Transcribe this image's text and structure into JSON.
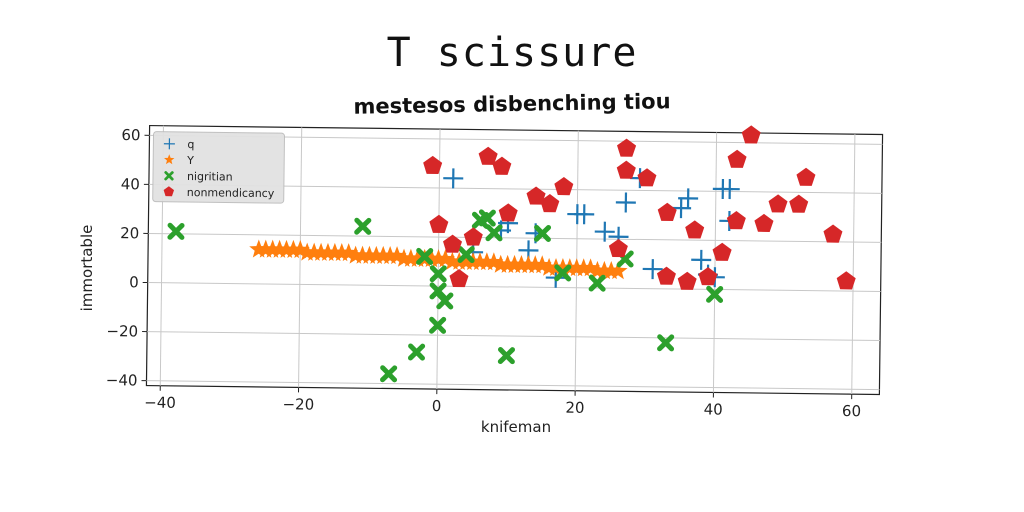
{
  "chart_data": {
    "type": "scatter",
    "title": "T scissure",
    "subtitle": "mestesos disbenching tiou",
    "xlabel": "knifeman",
    "ylabel": "immortable",
    "xlim": [
      -42,
      64
    ],
    "ylim": [
      -42,
      64
    ],
    "x_ticks": [
      -40,
      -20,
      0,
      20,
      40,
      60
    ],
    "y_ticks": [
      -40,
      -20,
      0,
      20,
      40,
      60
    ],
    "grid": true,
    "legend_position": "top-left",
    "series": [
      {
        "name": "q",
        "marker": "plus",
        "color": "#1f77b4",
        "points": [
          [
            2,
            44
          ],
          [
            5,
            14
          ],
          [
            9,
            23
          ],
          [
            10,
            26
          ],
          [
            13,
            15
          ],
          [
            14,
            22
          ],
          [
            17,
            4
          ],
          [
            20,
            30
          ],
          [
            21,
            30
          ],
          [
            24,
            23
          ],
          [
            26,
            21
          ],
          [
            27,
            35
          ],
          [
            29,
            45
          ],
          [
            31,
            8
          ],
          [
            35,
            33
          ],
          [
            36,
            37
          ],
          [
            38,
            12
          ],
          [
            39,
            6
          ],
          [
            40,
            5
          ],
          [
            41,
            41
          ],
          [
            42,
            41
          ],
          [
            42,
            28
          ]
        ]
      },
      {
        "name": "Y",
        "marker": "star",
        "color": "#ff7f0e",
        "points": [
          [
            -26,
            14
          ],
          [
            -25,
            14
          ],
          [
            -24,
            14
          ],
          [
            -23,
            14
          ],
          [
            -22,
            14
          ],
          [
            -21,
            14
          ],
          [
            -20,
            14
          ],
          [
            -19,
            13
          ],
          [
            -18,
            13
          ],
          [
            -17,
            13
          ],
          [
            -16,
            13
          ],
          [
            -15,
            13
          ],
          [
            -14,
            13
          ],
          [
            -13,
            13
          ],
          [
            -12,
            12
          ],
          [
            -11,
            12
          ],
          [
            -10,
            12
          ],
          [
            -9,
            12
          ],
          [
            -8,
            12
          ],
          [
            -7,
            12
          ],
          [
            -6,
            12
          ],
          [
            -5,
            11
          ],
          [
            -4,
            11
          ],
          [
            -3,
            11
          ],
          [
            -2,
            11
          ],
          [
            -1,
            11
          ],
          [
            0,
            11
          ],
          [
            1,
            11
          ],
          [
            2,
            10
          ],
          [
            3,
            10
          ],
          [
            4,
            10
          ],
          [
            5,
            10
          ],
          [
            6,
            10
          ],
          [
            7,
            10
          ],
          [
            8,
            10
          ],
          [
            9,
            9
          ],
          [
            10,
            9
          ],
          [
            11,
            9
          ],
          [
            12,
            9
          ],
          [
            13,
            9
          ],
          [
            14,
            9
          ],
          [
            15,
            9
          ],
          [
            16,
            8
          ],
          [
            17,
            8
          ],
          [
            18,
            8
          ],
          [
            19,
            8
          ],
          [
            20,
            8
          ],
          [
            21,
            8
          ],
          [
            22,
            8
          ],
          [
            23,
            7
          ],
          [
            24,
            7
          ],
          [
            25,
            7
          ],
          [
            26,
            7
          ]
        ]
      },
      {
        "name": "nigritian",
        "marker": "x",
        "color": "#2ca02c",
        "points": [
          [
            -38,
            21
          ],
          [
            -11,
            24
          ],
          [
            -2,
            12
          ],
          [
            -3,
            -27
          ],
          [
            -7,
            -36
          ],
          [
            0,
            -16
          ],
          [
            0,
            5
          ],
          [
            0,
            -2
          ],
          [
            1,
            -6
          ],
          [
            4,
            13
          ],
          [
            6,
            27
          ],
          [
            7,
            28
          ],
          [
            8,
            22
          ],
          [
            10,
            -28
          ],
          [
            15,
            22
          ],
          [
            18,
            6
          ],
          [
            23,
            2
          ],
          [
            27,
            12
          ],
          [
            33,
            -22
          ],
          [
            40,
            -2
          ]
        ]
      },
      {
        "name": "nonmendicancy",
        "marker": "pentagon",
        "color": "#d62728",
        "points": [
          [
            -1,
            49
          ],
          [
            0,
            25
          ],
          [
            2,
            17
          ],
          [
            3,
            3
          ],
          [
            5,
            20
          ],
          [
            7,
            53
          ],
          [
            9,
            49
          ],
          [
            10,
            30
          ],
          [
            14,
            37
          ],
          [
            16,
            34
          ],
          [
            18,
            41
          ],
          [
            26,
            16
          ],
          [
            27,
            57
          ],
          [
            27,
            48
          ],
          [
            30,
            45
          ],
          [
            33,
            31
          ],
          [
            33,
            5
          ],
          [
            36,
            3
          ],
          [
            37,
            24
          ],
          [
            39,
            5
          ],
          [
            41,
            15
          ],
          [
            43,
            53
          ],
          [
            43,
            28
          ],
          [
            45,
            63
          ],
          [
            47,
            27
          ],
          [
            49,
            35
          ],
          [
            52,
            35
          ],
          [
            53,
            46
          ],
          [
            57,
            23
          ],
          [
            59,
            4
          ]
        ]
      }
    ]
  }
}
